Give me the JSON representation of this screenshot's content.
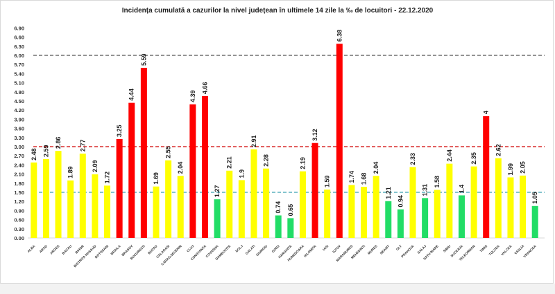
{
  "chart_data": {
    "type": "bar",
    "title": "Incidența cumulată a cazurilor la nivel județean în ultimele 14 zile la ‰ de locuitori - 22.12.2020",
    "xlabel": "",
    "ylabel": "",
    "ylim": [
      0,
      6.9
    ],
    "ytick_step": 0.3,
    "yticks": [
      "0.00",
      "0.30",
      "0.60",
      "0.90",
      "1.20",
      "1.50",
      "1.80",
      "2.10",
      "2.40",
      "2.70",
      "3.00",
      "3.30",
      "3.60",
      "3.90",
      "4.20",
      "4.50",
      "4.80",
      "5.10",
      "5.40",
      "5.70",
      "6.00",
      "6.30",
      "6.60",
      "6.90"
    ],
    "categories": [
      "ALBA",
      "ARAD",
      "ARGES",
      "BACAU",
      "BIHOR",
      "BISTRITA NASAUD",
      "BOTOSANI",
      "BRAILA",
      "BRASOV",
      "BUCURESTI",
      "BUZAU",
      "CALARASI",
      "CARAS-SEVERIN",
      "CLUJ",
      "CONSTANTA",
      "COVASNA",
      "DAMBOVITA",
      "DOLJ",
      "GALATI",
      "GIURGIU",
      "GORJ",
      "HARGHITA",
      "HUNEDOARA",
      "IALOMITA",
      "IASI",
      "ILFOV",
      "MARAMURES",
      "MEHEDINTI",
      "MURES",
      "NEAMT",
      "OLT",
      "PRAHOVA",
      "SALAJ",
      "SATU-MARE",
      "SIBIU",
      "SUCEAVA",
      "TELEORMAN",
      "TIMIS",
      "TULCEA",
      "VALCEA",
      "VASLUI",
      "VRANCEA"
    ],
    "values": [
      2.48,
      2.59,
      2.86,
      1.89,
      2.77,
      2.09,
      1.72,
      3.25,
      4.44,
      5.59,
      1.69,
      2.55,
      2.04,
      4.39,
      4.66,
      1.27,
      2.21,
      1.9,
      2.91,
      2.28,
      0.74,
      0.65,
      2.19,
      3.12,
      1.59,
      6.38,
      1.74,
      1.68,
      2.04,
      1.21,
      0.94,
      2.33,
      1.31,
      1.58,
      2.44,
      1.4,
      2.35,
      4,
      2.62,
      1.99,
      2.05,
      1.05
    ],
    "value_labels": [
      "2.48",
      "2.59",
      "2.86",
      "1.89",
      "2.77",
      "2.09",
      "1.72",
      "3.25",
      "4.44",
      "5.59",
      "1.69",
      "2.55",
      "2.04",
      "4.39",
      "4.66",
      "1.27",
      "2.21",
      "1.9",
      "2.91",
      "2.28",
      "0.74",
      "0.65",
      "2.19",
      "3.12",
      "1.59",
      "6.38",
      "1.74",
      "1.68",
      "2.04",
      "1.21",
      "0.94",
      "2.33",
      "1.31",
      "1.58",
      "2.44",
      "1.4",
      "2.35",
      "4",
      "2.62",
      "1.99",
      "2.05",
      "1.05"
    ],
    "thresholds": [
      {
        "value": 6.0,
        "color": "#555555"
      },
      {
        "value": 3.0,
        "color": "#d00000"
      },
      {
        "value": 1.5,
        "color": "#3aa0b0"
      }
    ],
    "colors": {
      "high": "#ff0000",
      "medium": "#ffff00",
      "low": "#22dd66"
    },
    "grid": false,
    "legend": "none"
  }
}
